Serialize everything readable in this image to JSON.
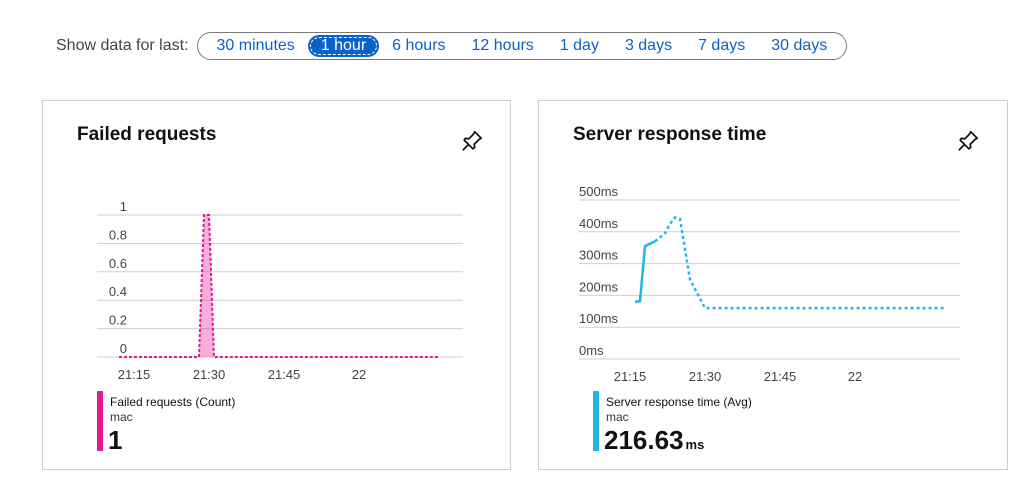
{
  "range": {
    "label": "Show data for last:",
    "options": [
      "30 minutes",
      "1 hour",
      "6 hours",
      "12 hours",
      "1 day",
      "3 days",
      "7 days",
      "30 days"
    ],
    "selected": "1 hour"
  },
  "failed_requests": {
    "title": "Failed requests",
    "legend": {
      "name": "Failed requests (Count)",
      "sub": "mac",
      "value": "1",
      "color": "#e3198f"
    }
  },
  "server_response": {
    "title": "Server response time",
    "legend": {
      "name": "Server response time (Avg)",
      "sub": "mac",
      "value": "216.63",
      "unit": "ms",
      "color": "#1fb5e8"
    }
  },
  "chart_data": [
    {
      "type": "area",
      "title": "Failed requests",
      "x_ticks": [
        "21:15",
        "21:30",
        "21:45",
        "22"
      ],
      "y_ticks": [
        "0",
        "0.2",
        "0.4",
        "0.6",
        "0.8",
        "1"
      ],
      "ylim": [
        0,
        1
      ],
      "grid": true,
      "series": [
        {
          "name": "Failed requests (Count)",
          "color": "#e3198f",
          "x": [
            "21:12",
            "21:28",
            "21:29",
            "21:30",
            "21:31",
            "22:16"
          ],
          "y": [
            0,
            0,
            1,
            1,
            0,
            0
          ]
        }
      ]
    },
    {
      "type": "line",
      "title": "Server response time",
      "x_ticks": [
        "21:15",
        "21:30",
        "21:45",
        "22"
      ],
      "y_ticks": [
        "0ms",
        "100ms",
        "200ms",
        "300ms",
        "400ms",
        "500ms"
      ],
      "ylim": [
        0,
        500
      ],
      "grid": true,
      "series": [
        {
          "name": "Server response time (Avg)",
          "color": "#1fb5e8",
          "x": [
            "21:16",
            "21:17",
            "21:18",
            "21:20",
            "21:22",
            "21:23",
            "21:24",
            "21:25",
            "21:27",
            "21:30",
            "22:18"
          ],
          "y": [
            180,
            182,
            355,
            370,
            395,
            425,
            445,
            440,
            250,
            160,
            160
          ]
        }
      ]
    }
  ]
}
